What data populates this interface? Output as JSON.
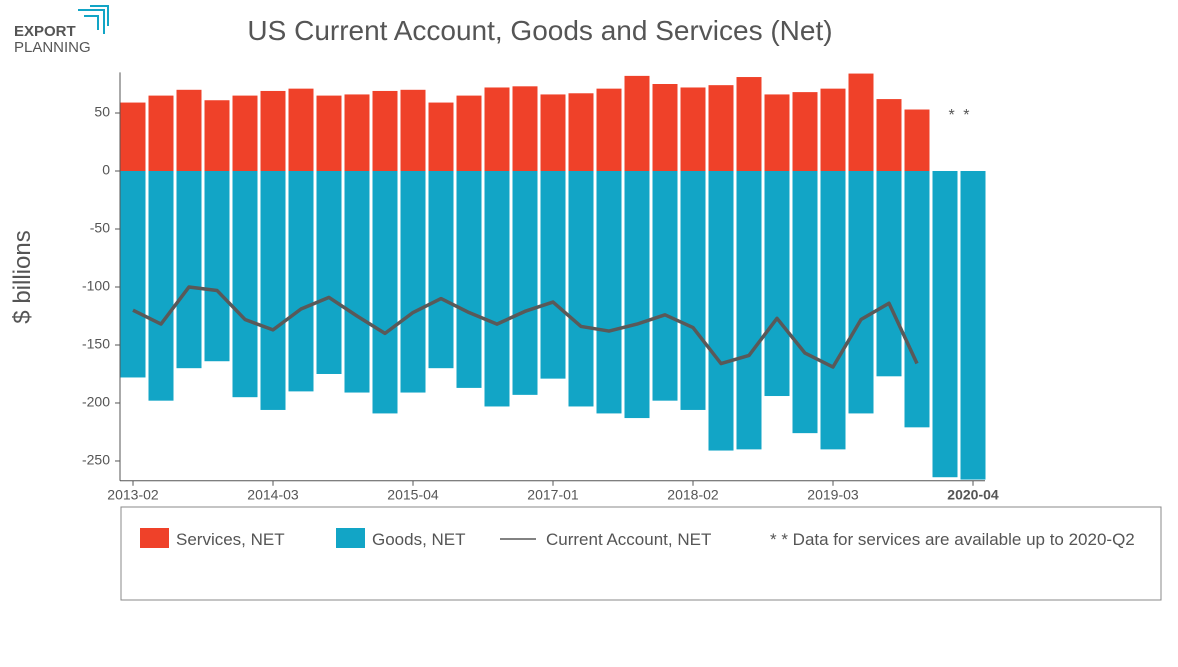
{
  "brand": {
    "line1": "EXPORT",
    "line2": "PLANNING"
  },
  "chart_data": {
    "type": "bar",
    "title": "US Current Account, Goods and Services (Net)",
    "ylabel": "$ billions",
    "categories": [
      "2013-02",
      null,
      null,
      null,
      null,
      "2014-03",
      null,
      null,
      null,
      null,
      "2015-04",
      null,
      null,
      null,
      null,
      "2017-01",
      null,
      null,
      null,
      null,
      "2018-02",
      null,
      null,
      null,
      null,
      "2019-03",
      null,
      null,
      null,
      null,
      "2020-04"
    ],
    "series": [
      {
        "name": "Services, NET",
        "color": "#ef4129",
        "kind": "bar",
        "values": [
          59,
          65,
          70,
          61,
          65,
          69,
          71,
          65,
          66,
          69,
          70,
          59,
          65,
          72,
          73,
          66,
          67,
          71,
          82,
          75,
          72,
          74,
          81,
          66,
          68,
          71,
          84,
          62,
          53,
          null,
          null
        ]
      },
      {
        "name": "Goods, NET",
        "color": "#12a5c6",
        "kind": "bar",
        "values": [
          -178,
          -198,
          -170,
          -164,
          -195,
          -206,
          -190,
          -175,
          -191,
          -209,
          -191,
          -170,
          -187,
          -203,
          -193,
          -179,
          -203,
          -209,
          -213,
          -198,
          -206,
          -241,
          -240,
          -194,
          -226,
          -240,
          -209,
          -177,
          -221,
          -264,
          -266
        ]
      },
      {
        "name": "Current Account, NET",
        "color": "#595959",
        "kind": "line",
        "values": [
          -120,
          -132,
          -100,
          -103,
          -128,
          -137,
          -119,
          -109,
          -125,
          -140,
          -122,
          -110,
          -122,
          -132,
          -121,
          -113,
          -134,
          -138,
          -132,
          -124,
          -135,
          -166,
          -159,
          -127,
          -157,
          -169,
          -128,
          -114,
          -166,
          null,
          null
        ]
      }
    ],
    "annotation": "* *",
    "note": "* * Data for services are available up to 2020-Q2",
    "ylim": [
      -267,
      85
    ],
    "yticks": [
      50,
      0,
      -50,
      -100,
      -150,
      -200,
      -250
    ]
  }
}
